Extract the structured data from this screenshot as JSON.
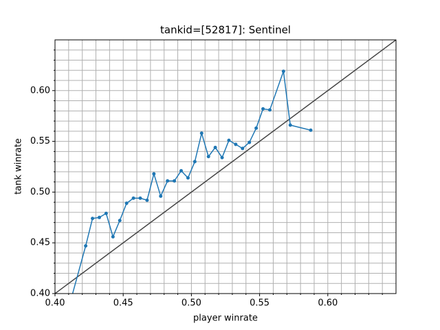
{
  "chart_data": {
    "type": "line",
    "title": "tankid=[52817]: Sentinel",
    "xlabel": "player winrate",
    "ylabel": "tank winrate",
    "x": [
      0.4125,
      0.4225,
      0.4275,
      0.4325,
      0.4375,
      0.4425,
      0.4475,
      0.4525,
      0.4575,
      0.4625,
      0.4675,
      0.4725,
      0.4775,
      0.4825,
      0.4875,
      0.4925,
      0.4975,
      0.5025,
      0.5075,
      0.5125,
      0.5175,
      0.5225,
      0.5275,
      0.5325,
      0.5375,
      0.5425,
      0.5475,
      0.5525,
      0.5575,
      0.5675,
      0.5725,
      0.5875
    ],
    "series": [
      {
        "name": "tank winrate",
        "color": "#1f77b4",
        "values": [
          0.398,
          0.447,
          0.474,
          0.475,
          0.479,
          0.456,
          0.472,
          0.489,
          0.494,
          0.494,
          0.492,
          0.518,
          0.496,
          0.511,
          0.511,
          0.521,
          0.514,
          0.53,
          0.558,
          0.535,
          0.544,
          0.534,
          0.551,
          0.547,
          0.543,
          0.549,
          0.563,
          0.582,
          0.581,
          0.619,
          0.566,
          0.561
        ]
      }
    ],
    "reference_line": {
      "x": [
        0.4,
        0.65
      ],
      "y": [
        0.4,
        0.65
      ],
      "color": "#444444"
    },
    "xlim": [
      0.4,
      0.65
    ],
    "ylim": [
      0.4,
      0.65
    ],
    "xticks": [
      {
        "value": 0.4,
        "label": "0.40"
      },
      {
        "value": 0.45,
        "label": "0.45"
      },
      {
        "value": 0.5,
        "label": "0.50"
      },
      {
        "value": 0.55,
        "label": "0.55"
      },
      {
        "value": 0.6,
        "label": "0.60"
      }
    ],
    "yticks": [
      {
        "value": 0.4,
        "label": "0.40"
      },
      {
        "value": 0.45,
        "label": "0.45"
      },
      {
        "value": 0.5,
        "label": "0.50"
      },
      {
        "value": 0.55,
        "label": "0.55"
      },
      {
        "value": 0.6,
        "label": "0.60"
      }
    ],
    "minor_ticks": [
      0.41,
      0.42,
      0.43,
      0.44,
      0.46,
      0.47,
      0.48,
      0.49,
      0.51,
      0.52,
      0.53,
      0.54,
      0.56,
      0.57,
      0.58,
      0.59,
      0.61,
      0.62,
      0.63,
      0.64
    ],
    "grid": true
  }
}
